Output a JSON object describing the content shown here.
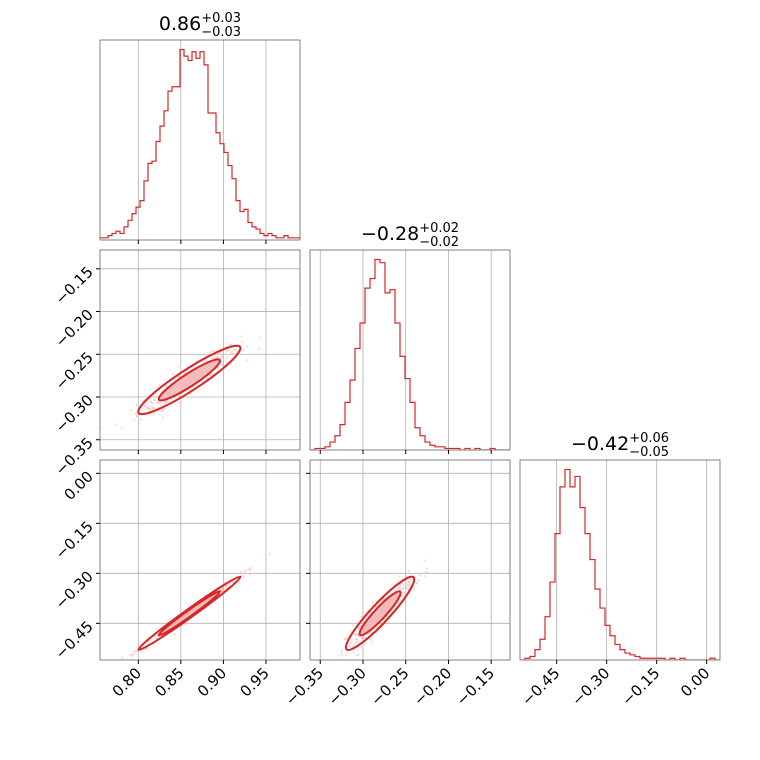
{
  "chart_data": {
    "type": "corner",
    "colors": {
      "primary": "#d62728",
      "fill": "#f2b8b9",
      "scatter": "#f4b6b6",
      "frame": "#808080",
      "grid": "#b0b0b0"
    },
    "parameters": [
      {
        "title": {
          "value": "0.86",
          "plus": "+0.03",
          "minus": "−0.03"
        },
        "range": [
          0.755,
          0.99
        ],
        "ticks": [
          0.8,
          0.85,
          0.9,
          0.95
        ],
        "tick_labels": [
          "0.80",
          "0.85",
          "0.90",
          "0.95"
        ],
        "hist": {
          "edges": [
            0.755,
            0.99
          ],
          "counts": [
            1,
            1,
            2,
            3,
            4,
            3,
            6,
            9,
            12,
            15,
            18,
            27,
            35,
            36,
            45,
            52,
            59,
            68,
            70,
            70,
            87,
            84,
            82,
            86,
            83,
            86,
            80,
            58,
            58,
            49,
            44,
            40,
            34,
            28,
            18,
            13,
            14,
            8,
            6,
            5,
            3,
            2,
            3,
            2,
            1,
            1,
            2,
            1,
            1,
            1
          ]
        }
      },
      {
        "title": {
          "value": "−0.28",
          "plus": "+0.02",
          "minus": "−0.02"
        },
        "range": [
          -0.362,
          -0.128
        ],
        "ticks": [
          -0.35,
          -0.3,
          -0.25,
          -0.2,
          -0.15
        ],
        "tick_labels": [
          "−0.35",
          "−0.30",
          "−0.25",
          "−0.20",
          "−0.15"
        ],
        "hist": {
          "edges": [
            -0.362,
            -0.128
          ],
          "counts": [
            0,
            1,
            1,
            2,
            5,
            9,
            16,
            30,
            44,
            64,
            80,
            102,
            108,
            120,
            118,
            99,
            101,
            80,
            59,
            45,
            30,
            14,
            9,
            5,
            3,
            2,
            2,
            1,
            1,
            1,
            0,
            1,
            0,
            1,
            0,
            0,
            1,
            0,
            0,
            0
          ]
        }
      },
      {
        "title": {
          "value": "−0.42",
          "plus": "+0.06",
          "minus": "−0.05"
        },
        "range": [
          -0.56,
          0.04
        ],
        "ticks": [
          -0.45,
          -0.3,
          -0.15,
          0.0
        ],
        "tick_labels": [
          "−0.45",
          "−0.30",
          "−0.15",
          "0.00"
        ],
        "hist": {
          "edges": [
            -0.56,
            0.04
          ],
          "counts": [
            0,
            1,
            2,
            6,
            12,
            25,
            45,
            73,
            100,
            110,
            100,
            106,
            88,
            73,
            58,
            41,
            30,
            20,
            14,
            9,
            6,
            4,
            3,
            2,
            1,
            1,
            1,
            1,
            1,
            0,
            1,
            0,
            1,
            0,
            0,
            0,
            0,
            0,
            1,
            0
          ]
        }
      }
    ],
    "pairs": [
      {
        "x": 0,
        "y": 1,
        "center": [
          0.86,
          -0.28
        ],
        "sd": [
          0.03,
          0.02
        ],
        "rho": 0.93
      },
      {
        "x": 0,
        "y": 2,
        "center": [
          0.86,
          -0.42
        ],
        "sd": [
          0.03,
          0.055
        ],
        "rho": 0.99
      },
      {
        "x": 1,
        "y": 2,
        "center": [
          -0.28,
          -0.42
        ],
        "sd": [
          0.02,
          0.055
        ],
        "rho": 0.93
      }
    ]
  }
}
